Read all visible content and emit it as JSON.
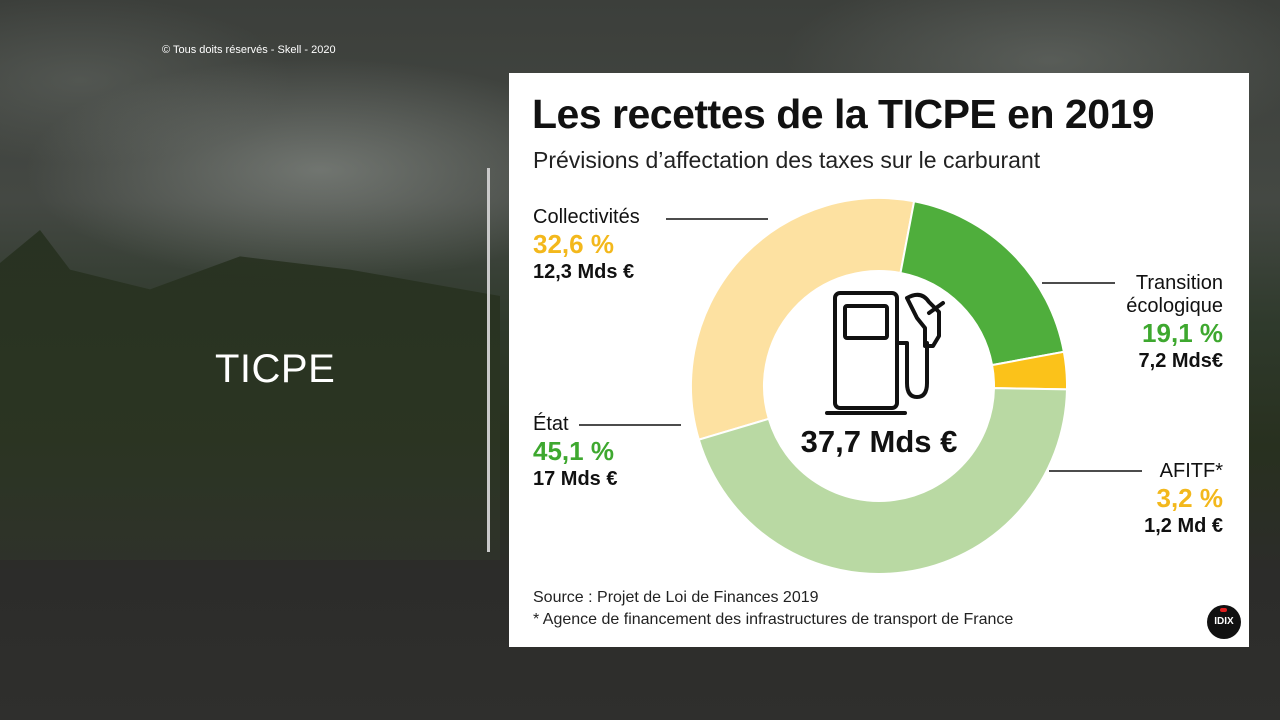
{
  "slide": {
    "copyright": "© Tous doits réservés - Skell - 2020",
    "title": "TICPE"
  },
  "chart_data": {
    "type": "pie",
    "title": "Les recettes de la TICPE en 2019",
    "subtitle": "Prévisions d’affectation des taxes sur le carburant",
    "center_label": "37,7 Mds €",
    "slices": [
      {
        "name": "Collectivités",
        "percent": 32.6,
        "percent_label": "32,6 %",
        "amount_label": "12,3 Mds €",
        "color": "#fde1a1"
      },
      {
        "name_lines": [
          "Transition",
          "écologique"
        ],
        "percent": 19.1,
        "percent_label": "19,1 %",
        "amount_label": "7,2 Mds€",
        "color": "#4fae3c"
      },
      {
        "name": "AFITF*",
        "percent": 3.2,
        "percent_label": "3,2 %",
        "amount_label": "1,2 Md €",
        "color": "#fbc21a"
      },
      {
        "name": "État",
        "percent": 45.1,
        "percent_label": "45,1 %",
        "amount_label": "17 Mds €",
        "color": "#b9d9a3"
      }
    ],
    "source_lines": [
      "Source : Projet de Loi de Finances 2019",
      "* Agence de financement des infrastructures de transport de France"
    ],
    "logo_text": "IDIX",
    "colors": {
      "pct_yellow": "#f3b81c",
      "pct_green": "#3ea82f"
    }
  }
}
